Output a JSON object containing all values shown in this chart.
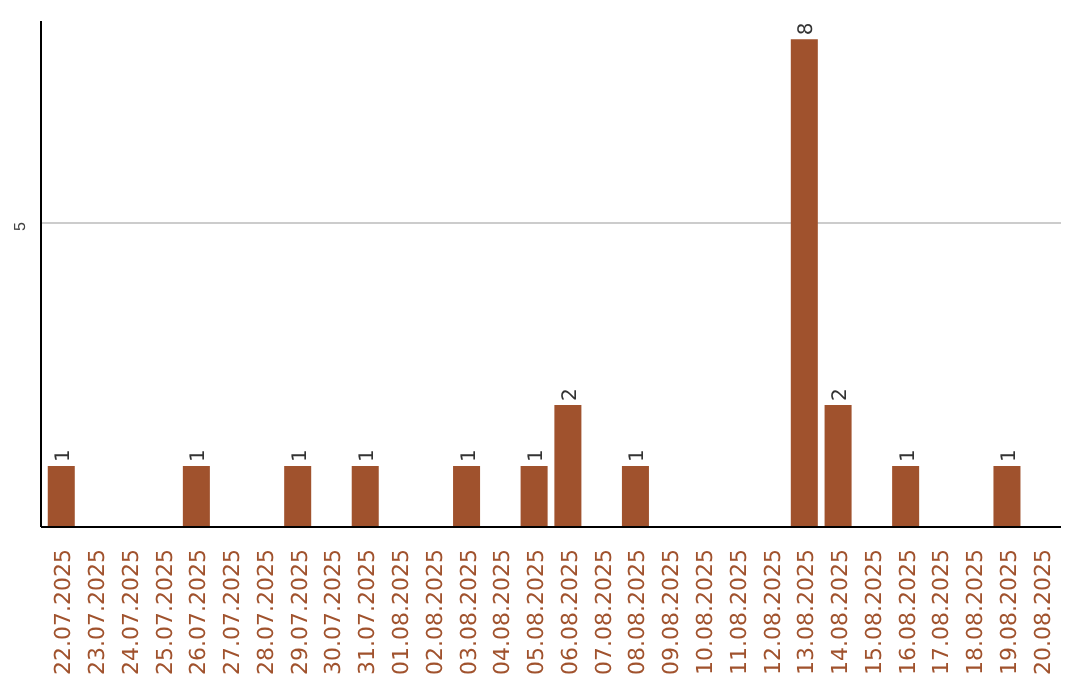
{
  "chart_data": {
    "type": "bar",
    "categories": [
      "22.07.2025",
      "23.07.2025",
      "24.07.2025",
      "25.07.2025",
      "26.07.2025",
      "27.07.2025",
      "28.07.2025",
      "29.07.2025",
      "30.07.2025",
      "31.07.2025",
      "01.08.2025",
      "02.08.2025",
      "03.08.2025",
      "04.08.2025",
      "05.08.2025",
      "06.08.2025",
      "07.08.2025",
      "08.08.2025",
      "09.08.2025",
      "10.08.2025",
      "11.08.2025",
      "12.08.2025",
      "13.08.2025",
      "14.08.2025",
      "15.08.2025",
      "16.08.2025",
      "17.08.2025",
      "18.08.2025",
      "19.08.2025",
      "20.08.2025"
    ],
    "values": [
      1,
      0,
      0,
      0,
      1,
      0,
      0,
      1,
      0,
      1,
      0,
      0,
      1,
      0,
      1,
      2,
      0,
      1,
      0,
      0,
      0,
      0,
      8,
      2,
      0,
      1,
      0,
      0,
      1,
      0
    ],
    "value_labels": [
      "1",
      null,
      null,
      null,
      "1",
      null,
      null,
      "1",
      null,
      "1",
      null,
      null,
      "1",
      null,
      "1",
      "2",
      null,
      "1",
      null,
      null,
      null,
      null,
      "8",
      "2",
      null,
      "1",
      null,
      null,
      "1",
      null
    ],
    "color": "#a0522d",
    "ylim": [
      0,
      8.3
    ],
    "yticks": [
      5
    ],
    "grid": "y"
  }
}
